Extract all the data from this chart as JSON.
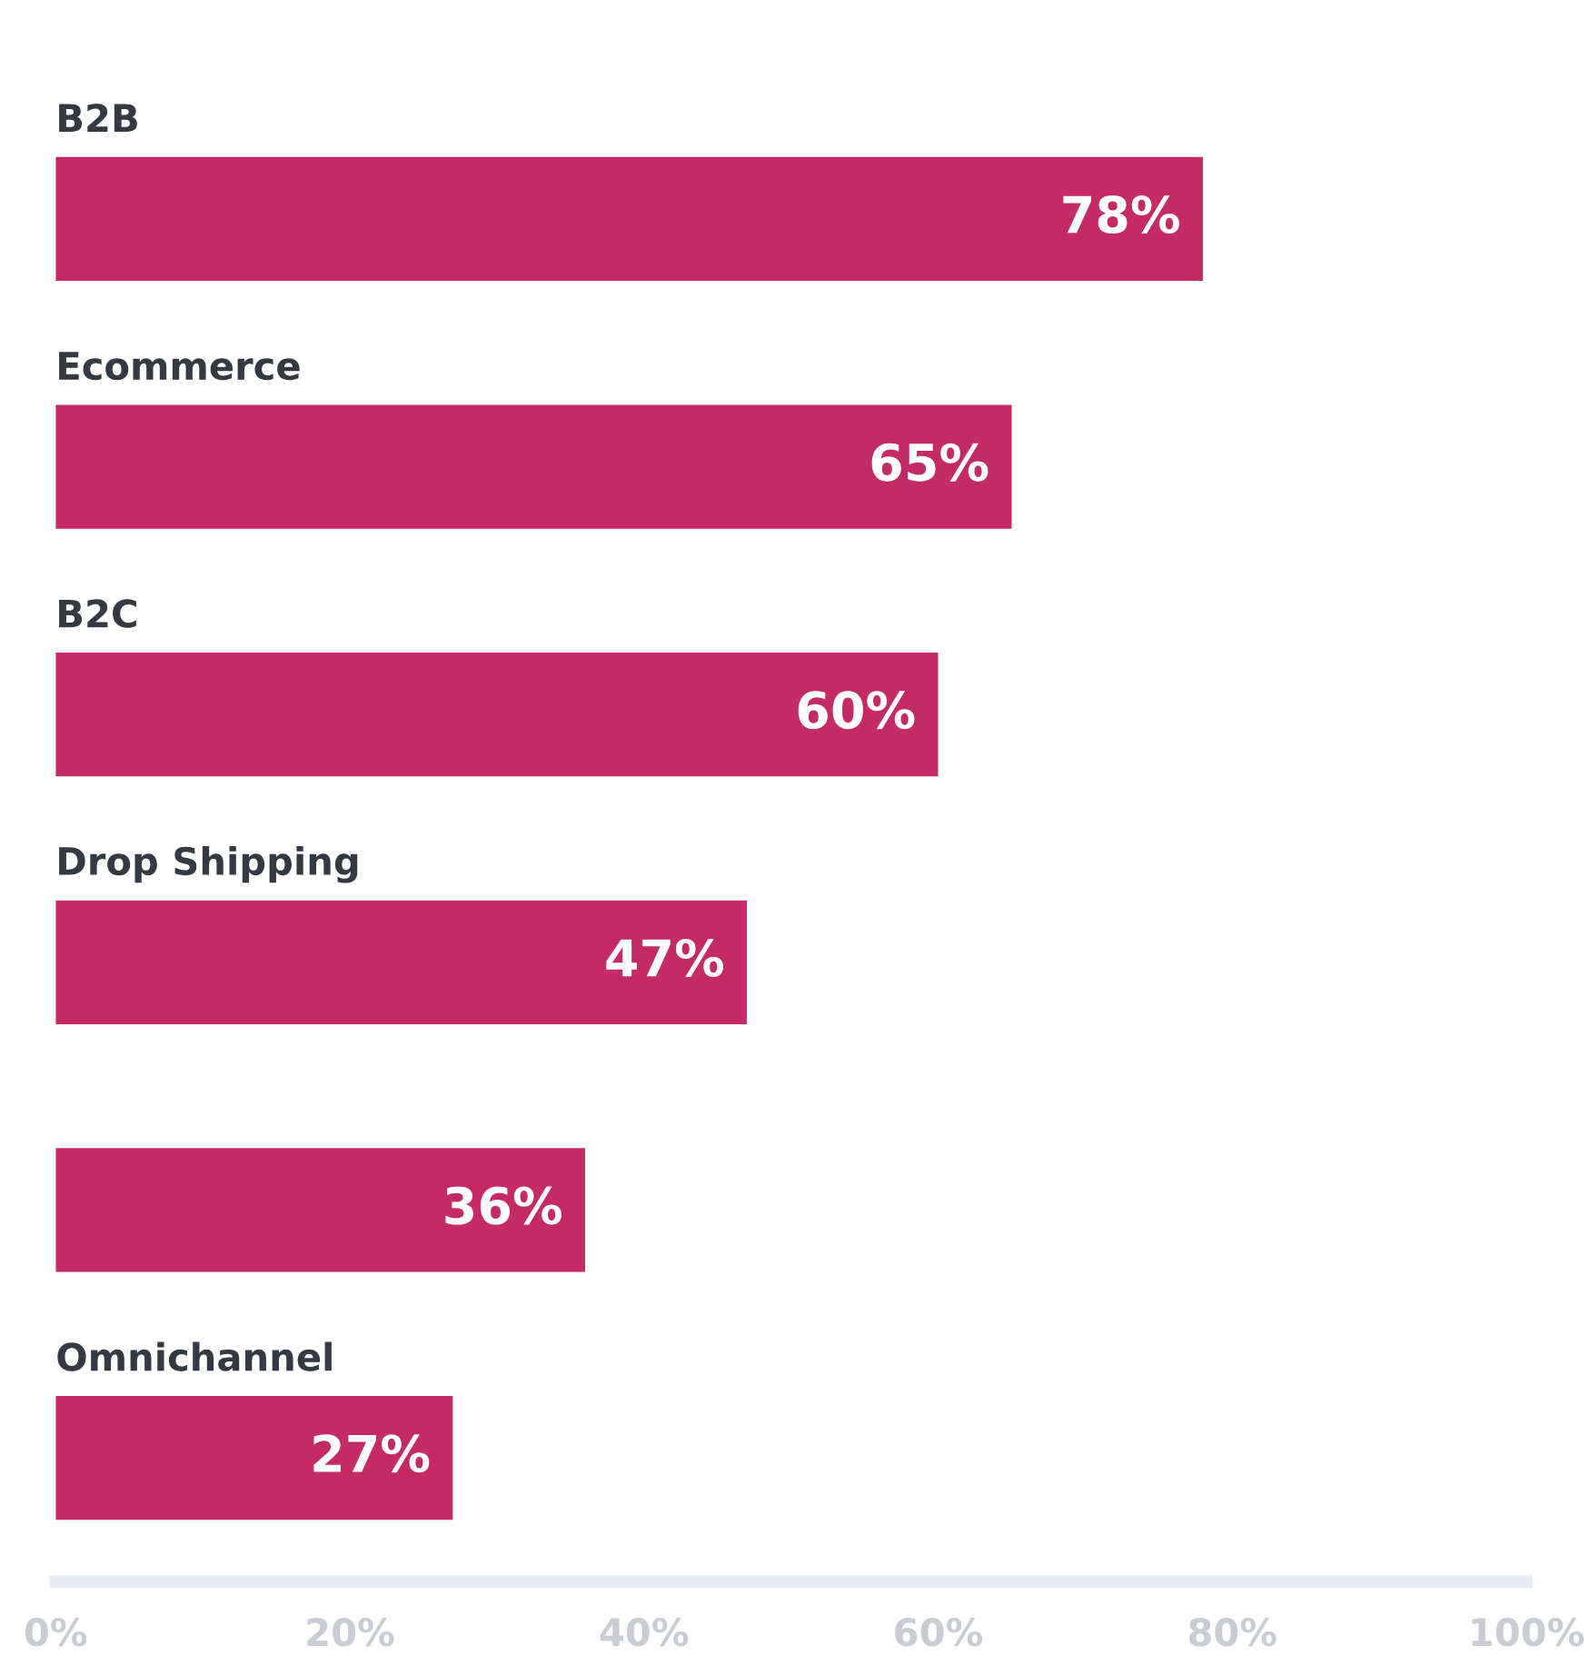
{
  "chart_data": {
    "type": "bar",
    "orientation": "horizontal",
    "categories": [
      "B2B",
      "Ecommerce",
      "B2C",
      "Drop Shipping",
      null,
      "Omnichannel"
    ],
    "values": [
      78,
      65,
      60,
      47,
      36,
      27
    ],
    "value_labels": [
      "78%",
      "65%",
      "60%",
      "47%",
      "36%",
      "27%"
    ],
    "color": "#c42a66",
    "xlim": [
      0,
      100
    ],
    "xticks": [
      {
        "value": 0,
        "label": "0%"
      },
      {
        "value": 20,
        "label": "20%"
      },
      {
        "value": 40,
        "label": "40%"
      },
      {
        "value": 60,
        "label": "60%"
      },
      {
        "value": 80,
        "label": "80%"
      },
      {
        "value": 100,
        "label": "100%"
      }
    ],
    "grid": false,
    "legend": false
  }
}
